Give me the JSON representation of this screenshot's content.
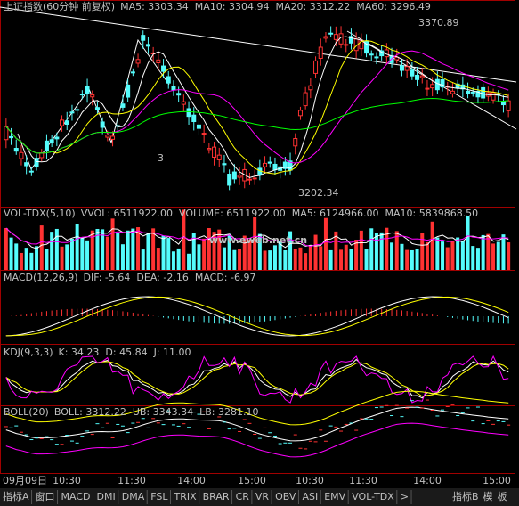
{
  "main": {
    "title": "上证指数(60分钟 前复权)",
    "indicators": [
      {
        "text": "MA5: 3303.34",
        "color": "#ffffff"
      },
      {
        "text": "MA10: 3304.94",
        "color": "#ffff00"
      },
      {
        "text": "MA20: 3312.22",
        "color": "#ff00ff"
      },
      {
        "text": "MA60: 3296.49",
        "color": "#00ff00"
      }
    ],
    "high_label": "3370.89",
    "low_label": "3202.34",
    "wave_label": "3"
  },
  "volume": {
    "title": "VOL-TDX(5,10)",
    "indicators": [
      {
        "text": "VVOL: 6511922.00",
        "color": "#ffffff"
      },
      {
        "text": "VOLUME: 6511922.00",
        "color": "#ffff00"
      },
      {
        "text": "MA5: 6124966.00",
        "color": "#ffffff"
      },
      {
        "text": "MA10: 5839868.50",
        "color": "#ff00ff"
      }
    ],
    "watermark": "www.eweb.net.cn"
  },
  "macd": {
    "title": "MACD(12,26,9)",
    "indicators": [
      {
        "text": "DIF: -5.64",
        "color": "#ffffff"
      },
      {
        "text": "DEA: -2.16",
        "color": "#ffff00"
      },
      {
        "text": "MACD: -6.97",
        "color": "#ff00ff"
      }
    ]
  },
  "kdj": {
    "title": "KDJ(9,3,3)",
    "indicators": [
      {
        "text": "K: 34.23",
        "color": "#ffffff"
      },
      {
        "text": "D: 45.84",
        "color": "#ffff00"
      },
      {
        "text": "J: 11.00",
        "color": "#ff00ff"
      }
    ]
  },
  "boll": {
    "title": "BOLL(20)",
    "indicators": [
      {
        "text": "BOLL: 3312.22",
        "color": "#ffffff"
      },
      {
        "text": "UB: 3343.34",
        "color": "#ffff00"
      },
      {
        "text": "LB: 3281.10",
        "color": "#ff00ff"
      }
    ]
  },
  "time_axis": [
    "09月09日",
    "10:30",
    "11:30",
    "14:00",
    "15:00",
    "10:30",
    "11:30",
    "14:00",
    "15:00"
  ],
  "tabs": [
    "指标A",
    "窗口",
    "MACD",
    "DMI",
    "DMA",
    "FSL",
    "TRIX",
    "BRAR",
    "CR",
    "VR",
    "OBV",
    "ASI",
    "EMV",
    "VOL-TDX",
    ">"
  ],
  "right_tabs": [
    "指标B",
    "模",
    "板"
  ]
}
